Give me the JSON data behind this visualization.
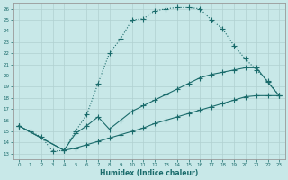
{
  "xlabel": "Humidex (Indice chaleur)",
  "bg_color": "#c8e8e8",
  "line_color": "#1a6b6b",
  "grid_color": "#b0d0d0",
  "xlim": [
    -0.5,
    23.5
  ],
  "ylim": [
    12.5,
    26.5
  ],
  "xticks": [
    0,
    1,
    2,
    3,
    4,
    5,
    6,
    7,
    8,
    9,
    10,
    11,
    12,
    13,
    14,
    15,
    16,
    17,
    18,
    19,
    20,
    21,
    22,
    23
  ],
  "yticks": [
    13,
    14,
    15,
    16,
    17,
    18,
    19,
    20,
    21,
    22,
    23,
    24,
    25,
    26
  ],
  "line1_x": [
    0,
    1,
    2,
    3,
    4,
    5,
    6,
    7,
    8,
    9,
    10,
    11,
    12,
    13,
    14,
    15,
    16,
    17,
    18,
    19,
    20,
    21,
    22,
    23
  ],
  "line1_y": [
    15.5,
    15.0,
    14.5,
    13.2,
    13.3,
    15.0,
    16.5,
    19.3,
    22.0,
    23.3,
    25.0,
    25.1,
    25.8,
    26.0,
    26.1,
    26.1,
    26.0,
    25.0,
    24.2,
    22.7,
    21.5,
    20.5,
    19.5,
    18.2
  ],
  "line2_x": [
    0,
    4,
    5,
    6,
    7,
    8,
    9,
    10,
    11,
    12,
    13,
    14,
    15,
    16,
    17,
    18,
    19,
    20,
    21,
    22,
    23
  ],
  "line2_y": [
    15.5,
    13.3,
    14.8,
    15.5,
    16.3,
    15.2,
    16.0,
    16.8,
    17.3,
    17.8,
    18.3,
    18.8,
    19.3,
    19.8,
    20.1,
    20.3,
    20.5,
    20.7,
    20.7,
    19.4,
    18.2
  ],
  "line3_x": [
    0,
    4,
    5,
    6,
    7,
    8,
    9,
    10,
    11,
    12,
    13,
    14,
    15,
    16,
    17,
    18,
    19,
    20,
    21,
    22,
    23
  ],
  "line3_y": [
    15.5,
    13.3,
    13.5,
    13.8,
    14.1,
    14.4,
    14.7,
    15.0,
    15.3,
    15.7,
    16.0,
    16.3,
    16.6,
    16.9,
    17.2,
    17.5,
    17.8,
    18.1,
    18.2,
    18.2,
    18.2
  ]
}
